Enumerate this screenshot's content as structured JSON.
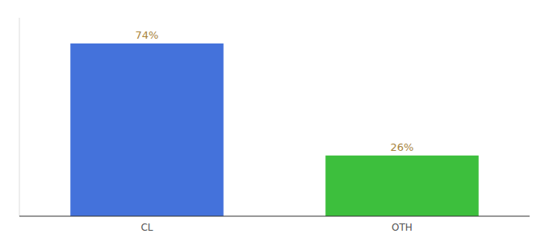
{
  "chart_data": {
    "type": "bar",
    "categories": [
      "CL",
      "OTH"
    ],
    "values": [
      74,
      26
    ],
    "value_labels": [
      "74%",
      "26%"
    ],
    "colors": [
      "#4472db",
      "#3dbf3d"
    ],
    "ylim": [
      0,
      85
    ],
    "data_labels": true,
    "tick_labels": "x",
    "grid": false
  }
}
